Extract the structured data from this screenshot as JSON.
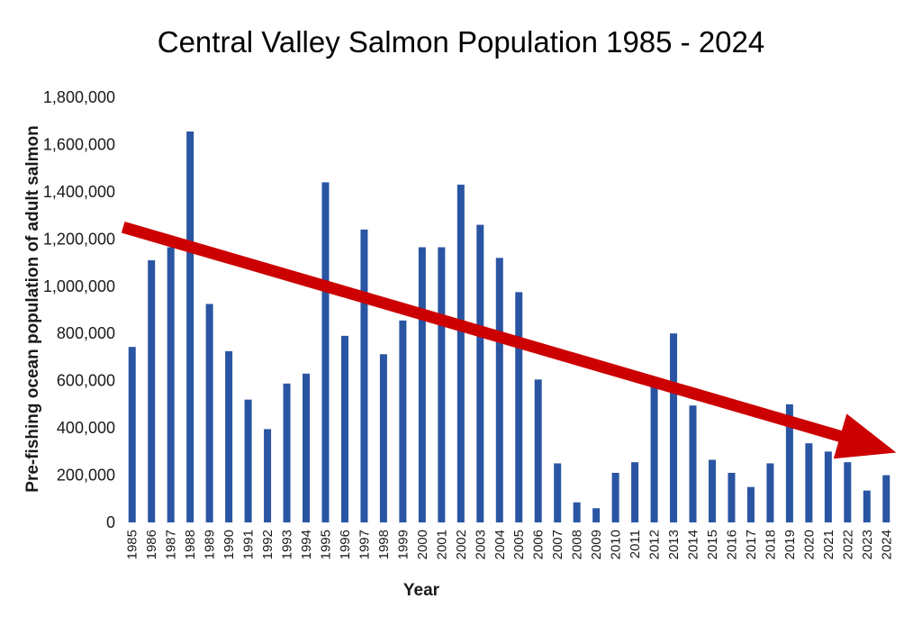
{
  "chart_data": {
    "type": "bar",
    "title": "Central Valley Salmon Population 1985 - 2024",
    "xlabel": "Year",
    "ylabel": "Pre-fishing ocean population of adult salmon",
    "ylim": [
      0,
      1800000
    ],
    "yticks": [
      "0",
      "200,000",
      "400,000",
      "600,000",
      "800,000",
      "1,000,000",
      "1,200,000",
      "1,400,000",
      "1,600,000",
      "1,800,000"
    ],
    "categories": [
      "1985",
      "1986",
      "1987",
      "1988",
      "1989",
      "1990",
      "1991",
      "1992",
      "1993",
      "1994",
      "1995",
      "1996",
      "1997",
      "1998",
      "1999",
      "2000",
      "2001",
      "2002",
      "2003",
      "2004",
      "2005",
      "2006",
      "2007",
      "2008",
      "2009",
      "2010",
      "2011",
      "2012",
      "2013",
      "2014",
      "2015",
      "2016",
      "2017",
      "2018",
      "2019",
      "2020",
      "2021",
      "2022",
      "2023",
      "2024"
    ],
    "values": [
      743000,
      1110000,
      1165000,
      1655000,
      925000,
      725000,
      520000,
      395000,
      588000,
      630000,
      1440000,
      790000,
      1240000,
      712000,
      855000,
      1165000,
      1165000,
      1430000,
      1260000,
      1120000,
      975000,
      605000,
      250000,
      85000,
      60000,
      210000,
      255000,
      615000,
      800000,
      495000,
      265000,
      210000,
      150000,
      250000,
      500000,
      335000,
      300000,
      255000,
      135000,
      200000
    ],
    "grid": false,
    "trend_arrow": {
      "from": [
        1985,
        1250000
      ],
      "to": [
        2024,
        320000
      ],
      "color": "#cc0000"
    },
    "colors": {
      "bar": "#2a55a3",
      "arrow": "#cc0000"
    }
  }
}
